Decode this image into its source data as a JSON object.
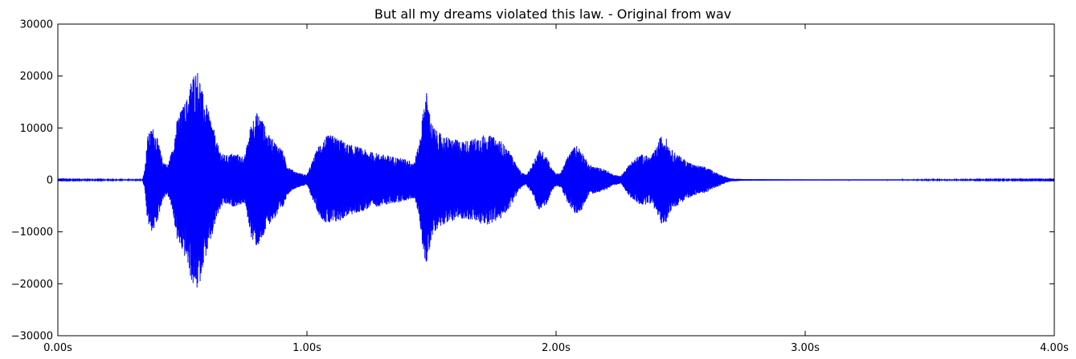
{
  "chart_data": {
    "type": "line",
    "title": "But all my dreams violated this law. - Original from wav",
    "xlabel": "",
    "ylabel": "",
    "xlim": [
      0,
      4
    ],
    "ylim": [
      -30000,
      30000
    ],
    "x_ticks": [
      0,
      1,
      2,
      3,
      4
    ],
    "x_tick_labels": [
      "0.00s",
      "1.00s",
      "2.00s",
      "3.00s",
      "4.00s"
    ],
    "y_ticks": [
      -30000,
      -20000,
      -10000,
      0,
      10000,
      20000,
      30000
    ],
    "y_tick_labels": [
      "−30000",
      "−20000",
      "−10000",
      "0",
      "10000",
      "20000",
      "30000"
    ],
    "grid": false,
    "series": [
      {
        "color": "#0000ff",
        "envelope_time": [
          0.0,
          0.34,
          0.35,
          0.36,
          0.38,
          0.4,
          0.42,
          0.44,
          0.46,
          0.48,
          0.5,
          0.52,
          0.54,
          0.56,
          0.57,
          0.58,
          0.6,
          0.62,
          0.64,
          0.66,
          0.68,
          0.7,
          0.72,
          0.75,
          0.78,
          0.8,
          0.82,
          0.84,
          0.86,
          0.88,
          0.9,
          0.92,
          0.94,
          0.96,
          0.98,
          1.0,
          1.02,
          1.05,
          1.08,
          1.1,
          1.13,
          1.16,
          1.2,
          1.25,
          1.3,
          1.35,
          1.4,
          1.43,
          1.45,
          1.47,
          1.48,
          1.49,
          1.5,
          1.52,
          1.55,
          1.58,
          1.62,
          1.66,
          1.7,
          1.74,
          1.78,
          1.82,
          1.84,
          1.86,
          1.88,
          1.9,
          1.93,
          1.96,
          1.98,
          2.0,
          2.02,
          2.05,
          2.08,
          2.1,
          2.13,
          2.16,
          2.2,
          2.23,
          2.26,
          2.3,
          2.34,
          2.38,
          2.4,
          2.42,
          2.44,
          2.46,
          2.5,
          2.55,
          2.6,
          2.64,
          2.67,
          2.7,
          2.75,
          3.0,
          3.5,
          4.0
        ],
        "envelope_amplitude": [
          50,
          60,
          2500,
          8500,
          10300,
          8000,
          4000,
          2800,
          6000,
          12000,
          14000,
          16000,
          20500,
          21300,
          20000,
          17000,
          14000,
          11000,
          7000,
          5000,
          4800,
          5200,
          5000,
          4500,
          12000,
          13000,
          12000,
          9000,
          8000,
          7000,
          6000,
          3000,
          2000,
          1500,
          1200,
          1000,
          3500,
          7000,
          8500,
          8700,
          8000,
          7000,
          6500,
          5500,
          5000,
          4500,
          4000,
          3500,
          7000,
          15000,
          17000,
          14000,
          11000,
          9500,
          8500,
          8000,
          7500,
          7800,
          8700,
          8500,
          7500,
          5000,
          3000,
          1500,
          1000,
          2500,
          6000,
          5000,
          2500,
          1200,
          1500,
          5000,
          6800,
          6000,
          3000,
          2500,
          2000,
          1000,
          800,
          3500,
          5000,
          4500,
          6000,
          8500,
          8300,
          6000,
          4500,
          3000,
          2500,
          1500,
          800,
          300,
          150,
          80,
          60,
          50
        ]
      }
    ]
  }
}
